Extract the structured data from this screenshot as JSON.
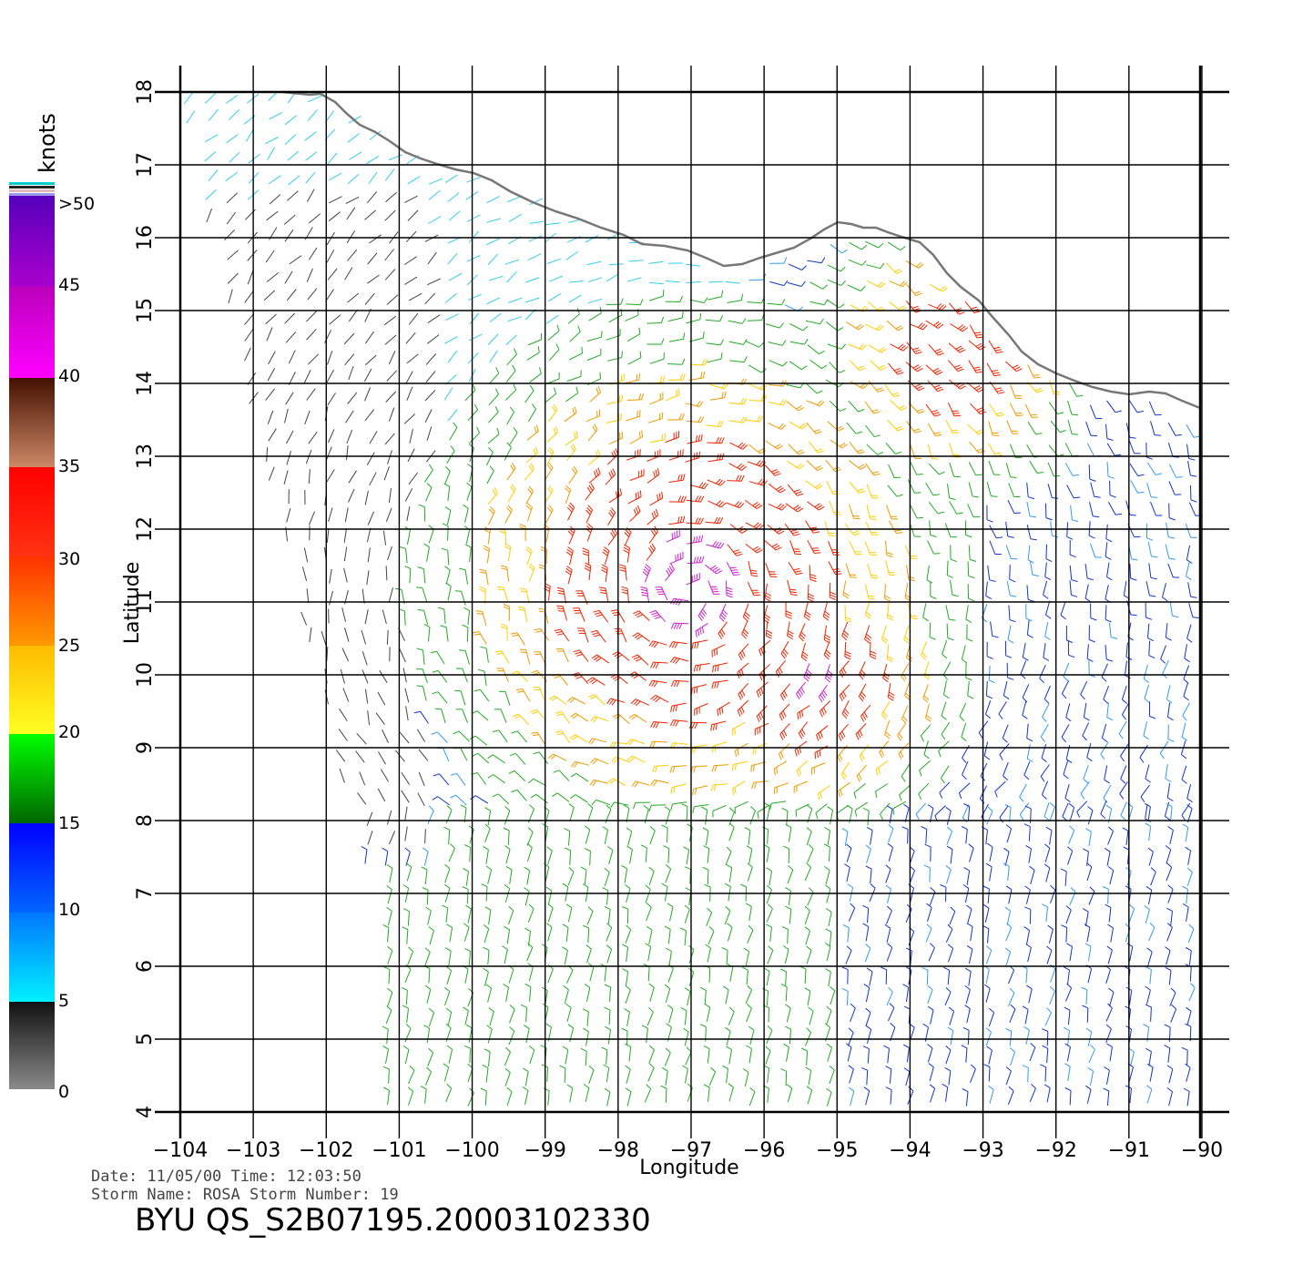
{
  "map": {
    "lon_ticks": [
      "−104",
      "−103",
      "−102",
      "−101",
      "−100",
      "−99",
      "−98",
      "−97",
      "−96",
      "−95",
      "−94",
      "−93",
      "−92",
      "−91",
      "−90"
    ],
    "lat_ticks": [
      "4",
      "5",
      "6",
      "7",
      "8",
      "9",
      "10",
      "11",
      "12",
      "13",
      "14",
      "15",
      "16",
      "17",
      "18"
    ],
    "xlabel": "Longitude",
    "ylabel": "Latitude",
    "grid": true,
    "lon_range": [
      -104,
      -90
    ],
    "lat_range": [
      4,
      18
    ]
  },
  "legend": {
    "unit": "knots",
    "labels": [
      ">50",
      "45",
      "40",
      "35",
      "30",
      "25",
      "20",
      "15",
      "10",
      "5",
      "0"
    ],
    "colors": {
      "0_5": [
        "#888888",
        "#111111"
      ],
      "5_10": [
        "#00eeff",
        "#0077ff"
      ],
      "10_15": [
        "#0066ff",
        "#0000ff"
      ],
      "15_20": [
        "#006600",
        "#00ff00"
      ],
      "20_25": [
        "#ffff22",
        "#ffcc00"
      ],
      "25_30": [
        "#ff9900",
        "#ff4400"
      ],
      "30_35": [
        "#ff2200",
        "#ff0000"
      ],
      "35_40": [
        "#bb7755",
        "#441100"
      ],
      "40_45": [
        "#ff00ff",
        "#bb00bb"
      ],
      "45_50": [
        "#9900cc",
        "#5500bb"
      ]
    }
  },
  "info": {
    "line1": "Date: 11/05/00   Time: 12:03:50",
    "line2": "Storm Name: ROSA   Storm Number: 19",
    "file_label": "BYU QS_S2B07195.20003102330"
  }
}
